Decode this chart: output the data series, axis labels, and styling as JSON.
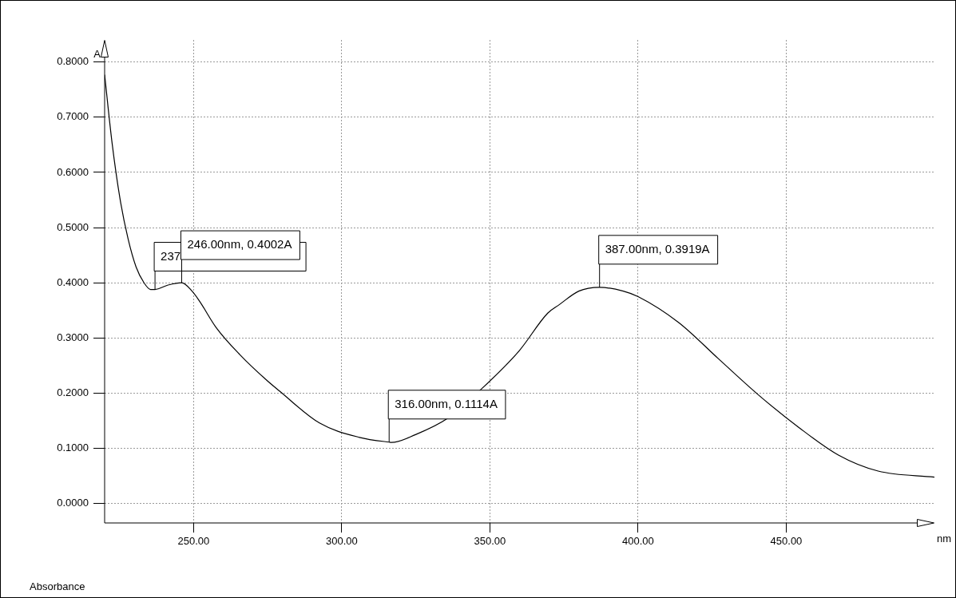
{
  "chart_data": {
    "type": "line",
    "xlabel": "nm",
    "ylabel": "A",
    "x": [
      220,
      222.5,
      225.2,
      227.9,
      230.6,
      233.3,
      235.5,
      237,
      241.4,
      246,
      249.5,
      252,
      257.5,
      265.6,
      275,
      279,
      292.5,
      306,
      316,
      316.8,
      324.9,
      335.6,
      346.4,
      359.9,
      369.5,
      373.3,
      380,
      387,
      395,
      400,
      413.7,
      427.2,
      440.6,
      454,
      467.6,
      481,
      500
    ],
    "series": [
      {
        "color": "#000000",
        "values": [
          0.777,
          0.654,
          0.552,
          0.48,
          0.429,
          0.4,
          0.388,
          0.388,
          0.396,
          0.4002,
          0.385,
          0.367,
          0.32,
          0.27,
          0.222,
          0.204,
          0.146,
          0.12,
          0.1114,
          0.111,
          0.125,
          0.154,
          0.204,
          0.277,
          0.345,
          0.36,
          0.385,
          0.3919,
          0.385,
          0.375,
          0.328,
          0.262,
          0.197,
          0.139,
          0.088,
          0.059,
          0.048
        ]
      }
    ],
    "xlim": [
      220,
      500
    ],
    "xticks": [
      {
        "value": 250,
        "label": "250.00"
      },
      {
        "value": 300,
        "label": "300.00"
      },
      {
        "value": 350,
        "label": "350.00"
      },
      {
        "value": 400,
        "label": "400.00"
      },
      {
        "value": 450,
        "label": "450.00"
      }
    ],
    "ylim": [
      -0.035,
      0.84
    ],
    "yticks": [
      {
        "value": 0,
        "label": "0.0000"
      },
      {
        "value": 0.1,
        "label": "0.1000"
      },
      {
        "value": 0.2,
        "label": "0.2000"
      },
      {
        "value": 0.3,
        "label": "0.3000"
      },
      {
        "value": 0.4,
        "label": "0.4000"
      },
      {
        "value": 0.5,
        "label": "0.5000"
      },
      {
        "value": 0.6,
        "label": "0.6000"
      },
      {
        "value": 0.7,
        "label": "0.7000"
      },
      {
        "value": 0.8,
        "label": "0.8000"
      }
    ],
    "grid": true,
    "legend": false,
    "marker": "none",
    "line_style": "solid",
    "annotations": [
      {
        "text": "237",
        "x": 237,
        "y": 0.388
      },
      {
        "text": "246.00nm, 0.4002A",
        "x": 246,
        "y": 0.4002
      },
      {
        "text": "316.00nm, 0.1114A",
        "x": 316,
        "y": 0.1114
      },
      {
        "text": "387.00nm, 0.3919A",
        "x": 387,
        "y": 0.3919
      },
      "Absorbance"
    ]
  }
}
